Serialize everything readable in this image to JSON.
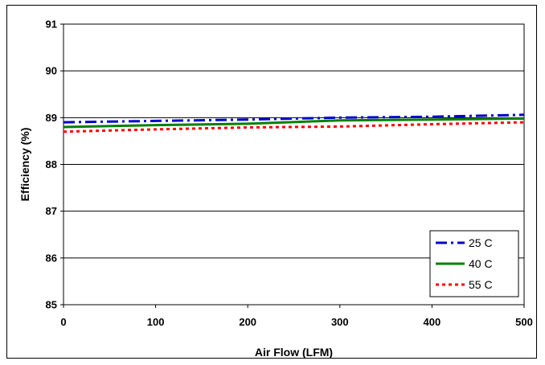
{
  "chart_data": {
    "type": "line",
    "title": "",
    "xlabel": "Air Flow (LFM)",
    "ylabel": "Efficiency (%)",
    "xlim": [
      0,
      500
    ],
    "ylim": [
      85,
      91
    ],
    "xticks": [
      0,
      100,
      200,
      300,
      400,
      500
    ],
    "yticks": [
      85,
      86,
      87,
      88,
      89,
      90,
      91
    ],
    "grid": "horizontal",
    "legend_position": "bottom-right",
    "x": [
      0,
      100,
      200,
      300,
      400,
      500
    ],
    "series": [
      {
        "name": "25 C",
        "values": [
          88.9,
          88.93,
          88.96,
          89.0,
          89.02,
          89.06
        ],
        "color": "#0000cc",
        "dash": "dash-dot"
      },
      {
        "name": "40 C",
        "values": [
          88.8,
          88.84,
          88.87,
          88.94,
          88.96,
          88.98
        ],
        "color": "#008000",
        "dash": "solid"
      },
      {
        "name": "55 C",
        "values": [
          88.7,
          88.75,
          88.79,
          88.81,
          88.86,
          88.9
        ],
        "color": "#ff0000",
        "dash": "dotted"
      }
    ]
  }
}
